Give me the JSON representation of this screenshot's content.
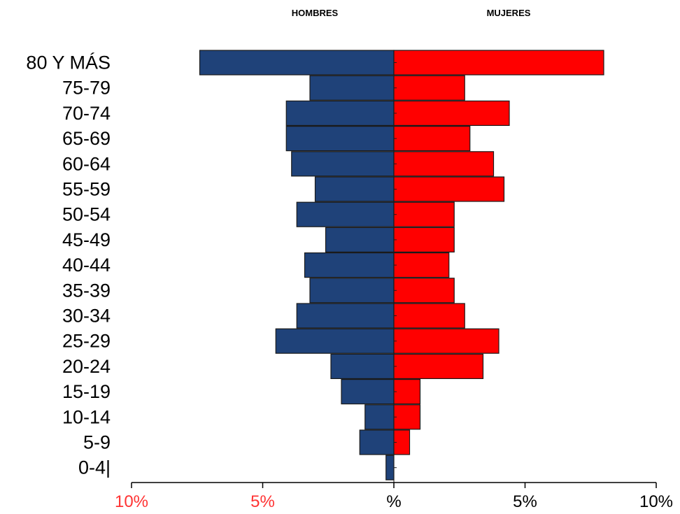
{
  "chart_data": {
    "type": "bar",
    "orientation": "horizontal-population-pyramid",
    "left_header": "HOMBRES",
    "right_header": "MUJERES",
    "categories": [
      "80 Y MÁS",
      "75-79",
      "70-74",
      "65-69",
      "60-64",
      "55-59",
      "50-54",
      "45-49",
      "40-44",
      "35-39",
      "30-34",
      "25-29",
      "20-24",
      "15-19",
      "10-14",
      "5-9",
      "0-4|"
    ],
    "series": [
      {
        "name": "HOMBRES",
        "values": [
          7.4,
          3.2,
          4.1,
          4.1,
          3.9,
          3.0,
          3.7,
          2.6,
          3.4,
          3.2,
          3.7,
          4.5,
          2.4,
          2.0,
          1.1,
          1.3,
          0.3
        ]
      },
      {
        "name": "MUJERES",
        "values": [
          8.0,
          2.7,
          4.4,
          2.9,
          3.8,
          4.2,
          2.3,
          2.3,
          2.1,
          2.3,
          2.7,
          4.0,
          3.4,
          1.0,
          1.0,
          0.6,
          0.0
        ]
      }
    ],
    "xlim": [
      -10,
      10
    ],
    "x_ticks": [
      {
        "value": -10,
        "label": "10%"
      },
      {
        "value": -5,
        "label": "5%"
      },
      {
        "value": 0,
        "label": "%"
      },
      {
        "value": 5,
        "label": "5%"
      },
      {
        "value": 10,
        "label": "10%"
      }
    ],
    "colors": {
      "hombres": "#1f4279",
      "mujeres": "#ff0000",
      "bar_stroke": "#1a1a1a",
      "negative_tick_label": "#ff3333",
      "positive_tick_label": "#000000"
    },
    "grid": false
  }
}
